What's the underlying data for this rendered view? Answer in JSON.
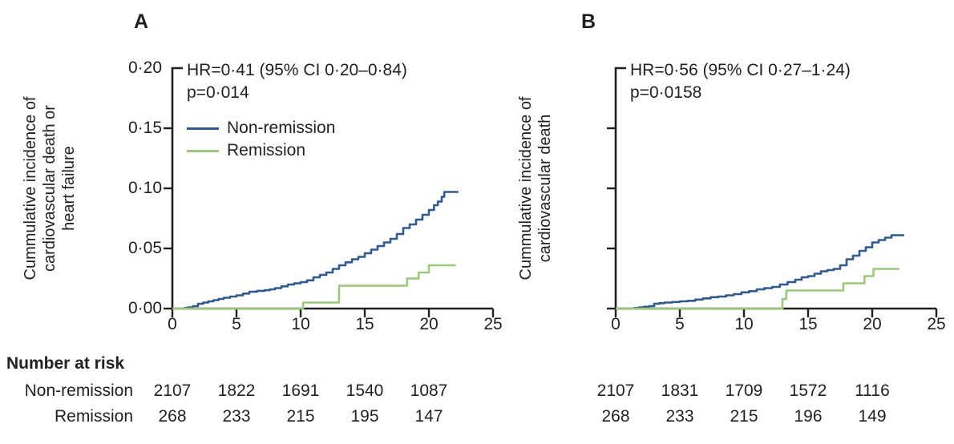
{
  "figure": {
    "colors": {
      "non_remission_line": "#31598C",
      "remission_line": "#9CC87C",
      "axis": "#231F20",
      "text": "#231F20",
      "background": "#FFFFFF"
    },
    "legend": {
      "entries": [
        {
          "label": "Non-remission",
          "color": "#31598C"
        },
        {
          "label": "Remission",
          "color": "#9CC87C"
        }
      ]
    },
    "number_at_risk": {
      "title": "Number at risk",
      "row_labels": [
        "Non-remission",
        "Remission"
      ],
      "timepoints": [
        0,
        5,
        10,
        15,
        20
      ]
    }
  },
  "chart_data": [
    {
      "type": "line",
      "panel_label": "A",
      "title": "",
      "xlabel": "",
      "ylabel_lines": [
        "Cummulative incidence of",
        "cardiovascular death or",
        "heart failure"
      ],
      "annotation_lines": [
        "HR=0·41 (95% CI 0·20–0·84)",
        "p=0·014"
      ],
      "legend_position": "upper-left-inside",
      "grid": false,
      "xlim": [
        0,
        25
      ],
      "ylim": [
        0,
        0.2
      ],
      "xticks": [
        0,
        5,
        10,
        15,
        20,
        25
      ],
      "xtick_labels": [
        "0",
        "5",
        "10",
        "15",
        "20",
        "25"
      ],
      "yticks": [
        0.0,
        0.05,
        0.1,
        0.15,
        0.2
      ],
      "ytick_labels": [
        "0·00",
        "0·05",
        "0·10",
        "0·15",
        "0·20"
      ],
      "show_ytick_labels": true,
      "series": [
        {
          "name": "Non-remission",
          "color": "#31598C",
          "step": true,
          "points": [
            [
              0.9,
              0.0005
            ],
            [
              1.2,
              0.001
            ],
            [
              1.6,
              0.002
            ],
            [
              2.0,
              0.004
            ],
            [
              2.4,
              0.005
            ],
            [
              2.8,
              0.006
            ],
            [
              3.2,
              0.007
            ],
            [
              3.6,
              0.008
            ],
            [
              4.0,
              0.009
            ],
            [
              4.5,
              0.01
            ],
            [
              5.0,
              0.011
            ],
            [
              5.5,
              0.0125
            ],
            [
              6.0,
              0.014
            ],
            [
              6.6,
              0.0147
            ],
            [
              7.2,
              0.0153
            ],
            [
              7.6,
              0.016
            ],
            [
              8.0,
              0.017
            ],
            [
              8.5,
              0.0185
            ],
            [
              9.0,
              0.02
            ],
            [
              9.5,
              0.021
            ],
            [
              10.0,
              0.022
            ],
            [
              10.5,
              0.0235
            ],
            [
              11.0,
              0.026
            ],
            [
              11.5,
              0.028
            ],
            [
              12.0,
              0.03
            ],
            [
              12.5,
              0.033
            ],
            [
              13.0,
              0.036
            ],
            [
              13.5,
              0.0385
            ],
            [
              14.0,
              0.041
            ],
            [
              14.5,
              0.043
            ],
            [
              15.0,
              0.046
            ],
            [
              15.5,
              0.049
            ],
            [
              16.0,
              0.052
            ],
            [
              16.5,
              0.055
            ],
            [
              17.0,
              0.058
            ],
            [
              17.5,
              0.062
            ],
            [
              18.0,
              0.067
            ],
            [
              18.5,
              0.07
            ],
            [
              19.0,
              0.074
            ],
            [
              19.5,
              0.078
            ],
            [
              20.0,
              0.082
            ],
            [
              20.4,
              0.086
            ],
            [
              20.7,
              0.089
            ],
            [
              21.0,
              0.093
            ],
            [
              21.2,
              0.097
            ],
            [
              22.3,
              0.097
            ]
          ]
        },
        {
          "name": "Remission",
          "color": "#9CC87C",
          "step": true,
          "points": [
            [
              0,
              0
            ],
            [
              10.2,
              0.005
            ],
            [
              13.0,
              0.019
            ],
            [
              18.3,
              0.025
            ],
            [
              19.2,
              0.03
            ],
            [
              20.0,
              0.036
            ],
            [
              22.1,
              0.036
            ]
          ]
        }
      ],
      "number_at_risk_rows": [
        [
          "2107",
          "1822",
          "1691",
          "1540",
          "1087"
        ],
        [
          "268",
          "233",
          "215",
          "195",
          "147"
        ]
      ]
    },
    {
      "type": "line",
      "panel_label": "B",
      "title": "",
      "xlabel": "",
      "ylabel_lines": [
        "Cummulative incidence of",
        "cardiovascular death"
      ],
      "annotation_lines": [
        "HR=0·56 (95% CI 0·27–1·24)",
        "p=0·0158"
      ],
      "legend_position": "none",
      "grid": false,
      "xlim": [
        0,
        25
      ],
      "ylim": [
        0,
        0.2
      ],
      "xticks": [
        0,
        5,
        10,
        15,
        20,
        25
      ],
      "xtick_labels": [
        "0",
        "5",
        "10",
        "15",
        "20",
        "25"
      ],
      "yticks": [
        0.0,
        0.05,
        0.1,
        0.15,
        0.2
      ],
      "ytick_labels": [],
      "show_ytick_labels": false,
      "series": [
        {
          "name": "Non-remission",
          "color": "#31598C",
          "step": true,
          "points": [
            [
              1.4,
              0.0005
            ],
            [
              1.8,
              0.001
            ],
            [
              2.2,
              0.0015
            ],
            [
              2.6,
              0.002
            ],
            [
              3.0,
              0.004
            ],
            [
              3.4,
              0.0045
            ],
            [
              3.8,
              0.005
            ],
            [
              4.4,
              0.0055
            ],
            [
              5.0,
              0.006
            ],
            [
              5.6,
              0.0065
            ],
            [
              6.2,
              0.0075
            ],
            [
              6.8,
              0.0085
            ],
            [
              7.4,
              0.0095
            ],
            [
              8.0,
              0.01
            ],
            [
              8.6,
              0.011
            ],
            [
              9.2,
              0.012
            ],
            [
              9.8,
              0.0135
            ],
            [
              10.4,
              0.0145
            ],
            [
              11.0,
              0.016
            ],
            [
              11.6,
              0.017
            ],
            [
              12.2,
              0.018
            ],
            [
              12.8,
              0.02
            ],
            [
              13.4,
              0.022
            ],
            [
              14.0,
              0.024
            ],
            [
              14.5,
              0.026
            ],
            [
              15.0,
              0.027
            ],
            [
              15.5,
              0.029
            ],
            [
              16.0,
              0.031
            ],
            [
              16.5,
              0.032
            ],
            [
              17.0,
              0.033
            ],
            [
              17.5,
              0.036
            ],
            [
              18.0,
              0.041
            ],
            [
              18.5,
              0.044
            ],
            [
              19.0,
              0.048
            ],
            [
              19.5,
              0.051
            ],
            [
              20.0,
              0.055
            ],
            [
              20.5,
              0.057
            ],
            [
              21.0,
              0.059
            ],
            [
              21.5,
              0.061
            ],
            [
              22.5,
              0.061
            ]
          ]
        },
        {
          "name": "Remission",
          "color": "#9CC87C",
          "step": true,
          "points": [
            [
              0,
              0
            ],
            [
              13.0,
              0.008
            ],
            [
              13.3,
              0.015
            ],
            [
              17.75,
              0.021
            ],
            [
              19.4,
              0.027
            ],
            [
              20.1,
              0.033
            ],
            [
              22.1,
              0.033
            ]
          ]
        }
      ],
      "number_at_risk_rows": [
        [
          "2107",
          "1831",
          "1709",
          "1572",
          "1116"
        ],
        [
          "268",
          "233",
          "215",
          "196",
          "149"
        ]
      ]
    }
  ]
}
